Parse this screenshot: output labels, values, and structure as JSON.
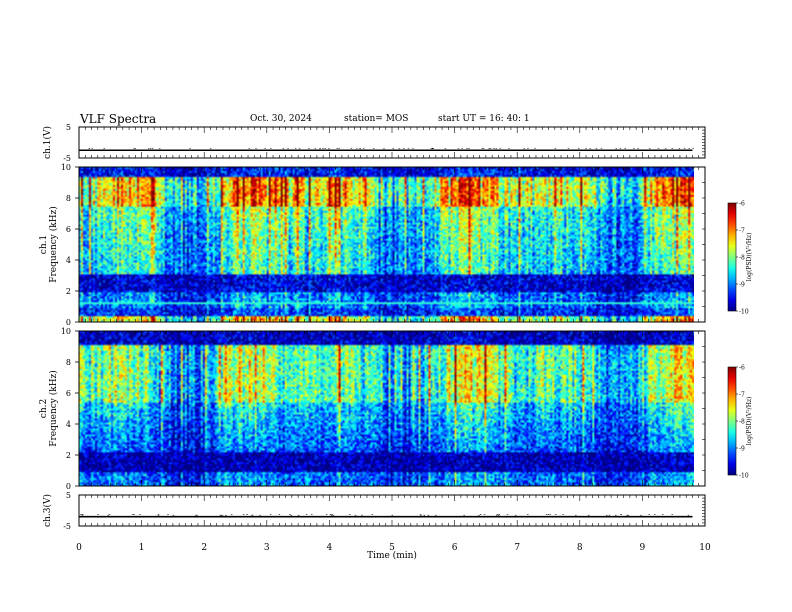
{
  "header": {
    "title": "VLF Spectra",
    "date": "Oct. 30, 2024",
    "station": "station= MOS",
    "start": "start  UT =   16: 40: 1"
  },
  "chart_data": [
    {
      "type": "line",
      "ylabel": "ch.1(V)",
      "ylim": [
        -5,
        5
      ],
      "yticks": [
        "5",
        "-5"
      ],
      "xlim": [
        0,
        10
      ],
      "series": [
        {
          "x": [
            0,
            9.8
          ],
          "y": [
            -2.5,
            -2.5
          ]
        }
      ]
    },
    {
      "type": "heatmap",
      "ylabel_top": "ch.1",
      "ylabel": "Frequency (kHz)",
      "ylim": [
        0,
        10
      ],
      "yticks": [
        "0",
        "2",
        "4",
        "6",
        "8",
        "10"
      ],
      "xlim": [
        0,
        10
      ],
      "data_extent_min": 9.83,
      "colorbar": {
        "label": "log(PSD)(V²/Hz)",
        "range": [
          -10,
          -6
        ],
        "ticks": [
          "-6",
          "-7",
          "-8",
          "-9",
          "-10"
        ]
      }
    },
    {
      "type": "heatmap",
      "ylabel_top": "ch.2",
      "ylabel": "Frequency (kHz)",
      "ylim": [
        0,
        10
      ],
      "yticks": [
        "0",
        "2",
        "4",
        "6",
        "8",
        "10"
      ],
      "xlim": [
        0,
        10
      ],
      "data_extent_min": 9.83,
      "colorbar": {
        "label": "log(PSD)(V²/Hz)",
        "range": [
          -10,
          -6
        ],
        "ticks": [
          "-6",
          "-7",
          "-8",
          "-9",
          "-10"
        ]
      }
    },
    {
      "type": "line",
      "ylabel": "ch.3(V)",
      "ylim": [
        -5,
        5
      ],
      "yticks": [
        "5",
        "-5"
      ],
      "xlim": [
        0,
        10
      ],
      "xlabel": "Time (min)",
      "xticks": [
        "0",
        "1",
        "2",
        "3",
        "4",
        "5",
        "6",
        "7",
        "8",
        "9",
        "10"
      ],
      "series": [
        {
          "x": [
            0,
            9.8
          ],
          "y": [
            -2.0,
            -2.0
          ]
        }
      ]
    }
  ]
}
